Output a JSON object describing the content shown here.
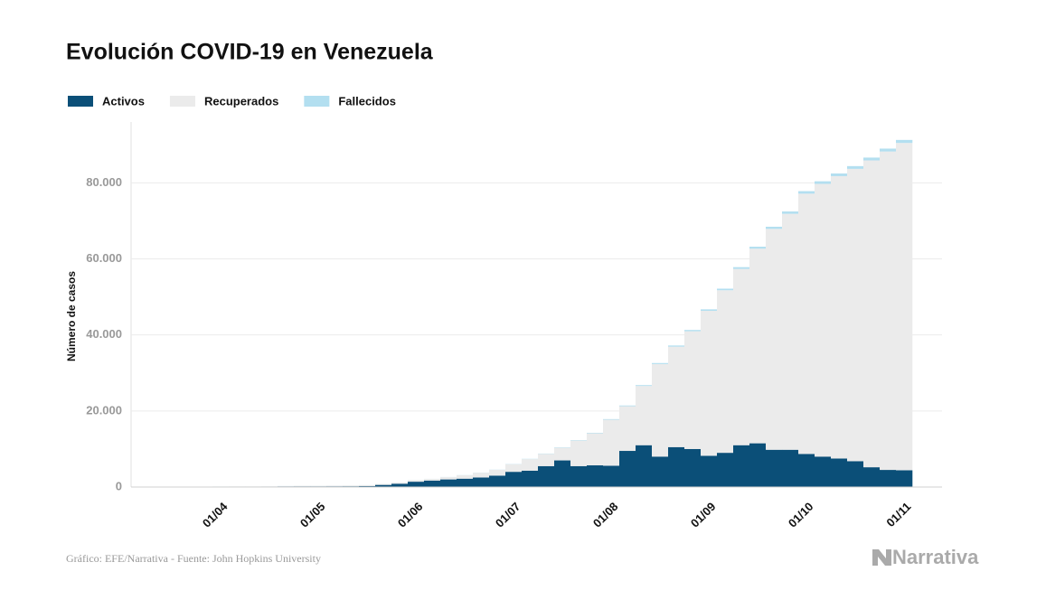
{
  "chart_data": {
    "type": "stacked_bar",
    "title": "Evolución COVID-19 en Venezuela",
    "y_label": "Número de casos",
    "source": "Gráfico: EFE/Narrativa - Fuente: John Hopkins University",
    "logo": "Narrativa",
    "categories": [
      null,
      null,
      null,
      "01/04",
      null,
      null,
      null,
      null,
      null,
      "01/05",
      null,
      null,
      null,
      null,
      null,
      "01/06",
      null,
      null,
      null,
      null,
      null,
      "01/07",
      null,
      null,
      null,
      null,
      null,
      "01/08",
      null,
      null,
      null,
      null,
      null,
      "01/09",
      null,
      null,
      null,
      null,
      null,
      "01/10",
      null,
      null,
      null,
      null,
      null,
      "01/11"
    ],
    "series": [
      {
        "name": "Activos",
        "color": "#0b4f78",
        "values": [
          33,
          70,
          91,
          96,
          100,
          80,
          100,
          170,
          180,
          180,
          190,
          200,
          260,
          560,
          860,
          1400,
          1700,
          2000,
          2200,
          2500,
          3000,
          4000,
          4300,
          5500,
          7000,
          5500,
          5700,
          5600,
          9500,
          11000,
          8000,
          10500,
          10000,
          8200,
          9000,
          11000,
          11500,
          9800,
          9800,
          8700,
          8000,
          7500,
          6800,
          5200,
          4500,
          4400
        ]
      },
      {
        "name": "Recuperados",
        "color": "#ebebeb",
        "values": [
          0,
          0,
          16,
          40,
          59,
          82,
          95,
          105,
          133,
          143,
          179,
          204,
          234,
          254,
          307,
          402,
          425,
          607,
          922,
          1256,
          1523,
          2005,
          3043,
          3220,
          3330,
          6718,
          8429,
          12103,
          11752,
          15570,
          24342,
          26414,
          30960,
          38143,
          42745,
          46353,
          51177,
          58083,
          62048,
          68447,
          71724,
          74253,
          76871,
          80696,
          83735,
          86088
        ]
      },
      {
        "name": "Fallecidos",
        "color": "#b3dff0",
        "values": [
          0,
          0,
          0,
          7,
          7,
          9,
          9,
          10,
          10,
          10,
          10,
          10,
          10,
          10,
          10,
          17,
          20,
          25,
          28,
          33,
          40,
          57,
          68,
          83,
          98,
          116,
          134,
          156,
          186,
          230,
          265,
          305,
          345,
          385,
          420,
          470,
          520,
          570,
          615,
          660,
          680,
          700,
          720,
          740,
          765,
          792
        ]
      }
    ],
    "ylim": [
      0,
      96000
    ],
    "yticks": [
      0,
      {
        "value": 20000,
        "label": "20.000"
      },
      {
        "value": 40000,
        "label": "40.000"
      },
      {
        "value": 60000,
        "label": "60.000"
      },
      {
        "value": 80000,
        "label": "80.000"
      }
    ],
    "grid": true
  }
}
